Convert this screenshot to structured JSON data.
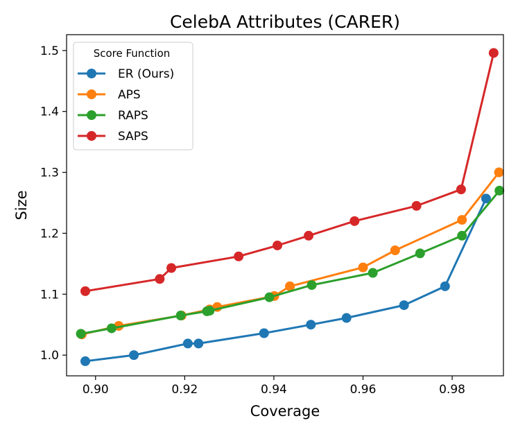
{
  "chart_data": {
    "type": "line",
    "title": "CelebA Attributes (CARER)",
    "xlabel": "Coverage",
    "ylabel": "Size",
    "xlim": [
      0.8935,
      0.9915
    ],
    "ylim": [
      0.966,
      1.526
    ],
    "xticks": [
      0.9,
      0.92,
      0.94,
      0.96,
      0.98
    ],
    "xtick_labels": [
      "0.90",
      "0.92",
      "0.94",
      "0.96",
      "0.98"
    ],
    "yticks": [
      1.0,
      1.1,
      1.2,
      1.3,
      1.4,
      1.5
    ],
    "ytick_labels": [
      "1.0",
      "1.1",
      "1.2",
      "1.3",
      "1.4",
      "1.5"
    ],
    "grid": false,
    "legend": {
      "title": "Score Function",
      "position": "upper-left"
    },
    "series": [
      {
        "name": "ER (Ours)",
        "color": "#1f77b4",
        "points": [
          [
            0.8977,
            0.99
          ],
          [
            0.9086,
            1.0
          ],
          [
            0.9207,
            1.019
          ],
          [
            0.9231,
            1.019
          ],
          [
            0.9378,
            1.036
          ],
          [
            0.9483,
            1.05
          ],
          [
            0.9563,
            1.061
          ],
          [
            0.9692,
            1.082
          ],
          [
            0.9784,
            1.113
          ],
          [
            0.9876,
            1.257
          ]
        ]
      },
      {
        "name": "APS",
        "color": "#ff7f0e",
        "points": [
          [
            0.8969,
            1.034
          ],
          [
            0.9052,
            1.048
          ],
          [
            0.9193,
            1.065
          ],
          [
            0.9256,
            1.075
          ],
          [
            0.9273,
            1.079
          ],
          [
            0.9401,
            1.097
          ],
          [
            0.9436,
            1.113
          ],
          [
            0.96,
            1.144
          ],
          [
            0.9672,
            1.172
          ],
          [
            0.9822,
            1.222
          ],
          [
            0.9905,
            1.3
          ]
        ]
      },
      {
        "name": "RAPS",
        "color": "#2ca02c",
        "points": [
          [
            0.8967,
            1.035
          ],
          [
            0.9036,
            1.044
          ],
          [
            0.9191,
            1.065
          ],
          [
            0.925,
            1.072
          ],
          [
            0.9256,
            1.073
          ],
          [
            0.939,
            1.095
          ],
          [
            0.9485,
            1.115
          ],
          [
            0.9622,
            1.135
          ],
          [
            0.9728,
            1.167
          ],
          [
            0.9822,
            1.196
          ],
          [
            0.9906,
            1.27
          ]
        ]
      },
      {
        "name": "SAPS",
        "color": "#d62728",
        "points": [
          [
            0.8977,
            1.105
          ],
          [
            0.9144,
            1.125
          ],
          [
            0.917,
            1.143
          ],
          [
            0.9321,
            1.162
          ],
          [
            0.9408,
            1.18
          ],
          [
            0.9478,
            1.196
          ],
          [
            0.9581,
            1.22
          ],
          [
            0.972,
            1.245
          ],
          [
            0.982,
            1.272
          ],
          [
            0.9893,
            1.496
          ]
        ]
      }
    ]
  }
}
